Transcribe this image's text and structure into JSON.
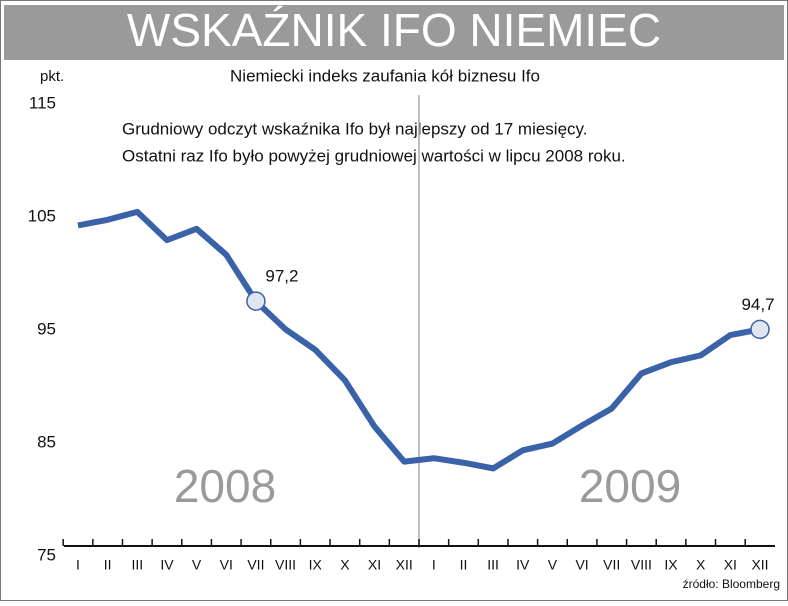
{
  "chart_data": {
    "type": "line",
    "title": "WSKAŹNIK IFO NIEMIEC",
    "subtitle": "Niemiecki indeks zaufania kół biznesu Ifo",
    "y_label": "pkt.",
    "annotation": [
      "Grudniowy odczyt wskaźnika Ifo był najlepszy od 17 miesięcy.",
      "Ostatni raz Ifo było powyżej grudniowej wartości w lipcu 2008 roku."
    ],
    "year_labels": [
      "2008",
      "2009"
    ],
    "source": "źródło: Bloomberg",
    "categories": [
      "I",
      "II",
      "III",
      "IV",
      "V",
      "VI",
      "VII",
      "VIII",
      "IX",
      "X",
      "XI",
      "XII",
      "I",
      "II",
      "III",
      "IV",
      "V",
      "VI",
      "VII",
      "VIII",
      "IX",
      "X",
      "XI",
      "XII"
    ],
    "series": [
      {
        "name": "Ifo",
        "color": "#3a62a8",
        "values": [
          103.9,
          104.4,
          105.1,
          102.6,
          103.6,
          101.3,
          97.2,
          94.7,
          92.9,
          90.2,
          86.1,
          83.0,
          83.3,
          82.9,
          82.4,
          84.0,
          84.6,
          86.2,
          87.7,
          90.8,
          91.8,
          92.4,
          94.2,
          94.7
        ],
        "value_labels": [
          null,
          null,
          null,
          null,
          null,
          null,
          "97,2",
          null,
          null,
          null,
          null,
          null,
          null,
          null,
          null,
          null,
          null,
          null,
          null,
          null,
          null,
          null,
          null,
          "94,7"
        ]
      }
    ],
    "ylim": [
      75,
      115
    ],
    "yticks": [
      75,
      85,
      95,
      105,
      115
    ],
    "grid": false
  }
}
